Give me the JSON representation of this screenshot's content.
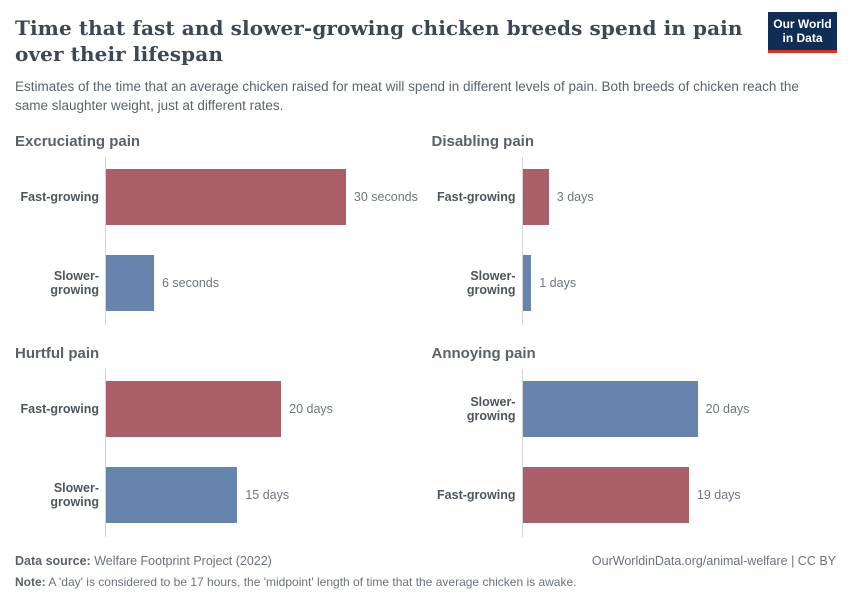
{
  "header": {
    "title": "Time that fast and slower-growing chicken breeds spend in pain over their lifespan",
    "subtitle": "Estimates of the time that an average chicken raised for meat will spend in different levels of pain. Both breeds of chicken reach the same slaughter weight, just at different rates."
  },
  "logo": {
    "line1": "Our World",
    "line2": "in Data",
    "bg_color": "#0f2d55",
    "accent_color": "#dc2e22"
  },
  "chart_data": {
    "type": "bar",
    "orientation": "horizontal",
    "layout": "2x2 facet grid",
    "grid": "off",
    "colors": {
      "fast-growing": "#ab5f68",
      "slower-growing": "#6784ae"
    },
    "panels": [
      {
        "title": "Excruciating pain",
        "unit": "seconds",
        "scale_max": 39.2,
        "bars": [
          {
            "label": "Fast-growing",
            "value": 30,
            "display": "30 seconds",
            "color_key": "fast-growing"
          },
          {
            "label": "Slower-growing",
            "value": 6,
            "display": "6 seconds",
            "color_key": "slower-growing"
          }
        ]
      },
      {
        "title": "Disabling pain",
        "unit": "days",
        "scale_max": 35.8,
        "bars": [
          {
            "label": "Fast-growing",
            "value": 3,
            "display": "3 days",
            "color_key": "fast-growing"
          },
          {
            "label": "Slower-growing",
            "value": 1,
            "display": "1 days",
            "color_key": "slower-growing"
          }
        ]
      },
      {
        "title": "Hurtful pain",
        "unit": "days",
        "scale_max": 35.8,
        "bars": [
          {
            "label": "Fast-growing",
            "value": 20,
            "display": "20 days",
            "color_key": "fast-growing"
          },
          {
            "label": "Slower-growing",
            "value": 15,
            "display": "15 days",
            "color_key": "slower-growing"
          }
        ]
      },
      {
        "title": "Annoying pain",
        "unit": "days",
        "scale_max": 35.8,
        "bars": [
          {
            "label": "Slower-growing",
            "value": 20,
            "display": "20 days",
            "color_key": "slower-growing"
          },
          {
            "label": "Fast-growing",
            "value": 19,
            "display": "19 days",
            "color_key": "fast-growing"
          }
        ]
      }
    ]
  },
  "footer": {
    "source_label": "Data source:",
    "source_value": "Welfare Footprint Project (2022)",
    "credit": "OurWorldinData.org/animal-welfare | CC BY",
    "note_label": "Note:",
    "note_text": "A 'day' is considered to be 17 hours, the 'midpoint' length of time that the average chicken is awake."
  }
}
